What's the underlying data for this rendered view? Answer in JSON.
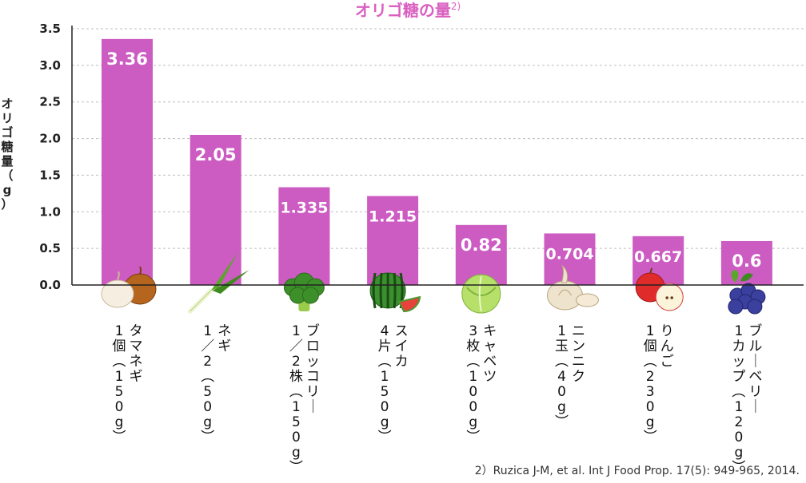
{
  "chart_data": {
    "type": "bar",
    "title": "オリゴ糖の量",
    "title_superscript": "2)",
    "ylabel": "オリゴ糖量（g）",
    "ylim": [
      0,
      3.5
    ],
    "yticks": [
      "0.0",
      "0.5",
      "1.0",
      "1.5",
      "2.0",
      "2.5",
      "3.0",
      "3.5"
    ],
    "grid": true,
    "values": [
      3.36,
      2.05,
      1.335,
      1.215,
      0.82,
      0.704,
      0.667,
      0.6
    ],
    "value_labels": [
      "3.36",
      "2.05",
      "1.335",
      "1.215",
      "0.82",
      "0.704",
      "0.667",
      "0.6"
    ],
    "categories": [
      {
        "name": "タマネギ",
        "amount": "1個（150g）",
        "icon": "onion-icon"
      },
      {
        "name": "ネギ",
        "amount": "1／2（50g）",
        "icon": "green-onion-icon"
      },
      {
        "name": "ブロッコリー",
        "amount": "1／2株（150g）",
        "icon": "broccoli-icon"
      },
      {
        "name": "スイカ",
        "amount": "4片（150g）",
        "icon": "watermelon-icon"
      },
      {
        "name": "キャベツ",
        "amount": "3枚（100g）",
        "icon": "cabbage-icon"
      },
      {
        "name": "ニンニク",
        "amount": "1玉（40g）",
        "icon": "garlic-icon"
      },
      {
        "name": "りんご",
        "amount": "1個（230g）",
        "icon": "apple-icon"
      },
      {
        "name": "ブルーベリー",
        "amount": "1カップ（120g）",
        "icon": "blueberry-icon"
      }
    ],
    "bar_color": "#cc5cc2",
    "title_color": "#d95fc0"
  },
  "footnote": "2）Ruzica J-M, et al. Int J Food Prop. 17(5): 949-965, 2014."
}
